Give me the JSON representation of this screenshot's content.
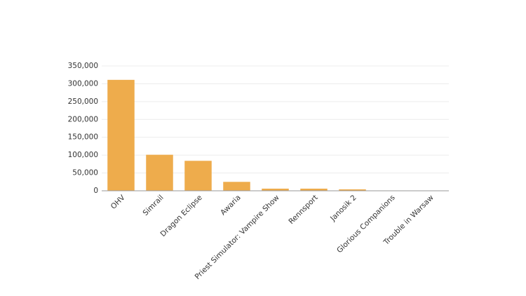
{
  "chart_data": {
    "type": "bar",
    "categories": [
      "OHV",
      "Simrail",
      "Dragon Eclipse",
      "Awaria",
      "Priest Simulator: Vampire Show",
      "Rennsport",
      "Janosik 2",
      "Glorious Companions",
      "Trouble in Warsaw"
    ],
    "values": [
      311000,
      101000,
      84000,
      25000,
      6000,
      6000,
      4000,
      1000,
      800
    ],
    "color": "#eeac4c",
    "ylim": [
      0,
      350000
    ],
    "yticks": [
      0,
      {
        "value": 50000,
        "label": "50,000"
      },
      {
        "value": 100000,
        "label": "100,000"
      },
      {
        "value": 150000,
        "label": "150,000"
      },
      {
        "value": 200000,
        "label": "200,000"
      },
      {
        "value": 250000,
        "label": "250,000"
      },
      {
        "value": 300000,
        "label": "300,000"
      },
      {
        "value": 350000,
        "label": "350,000"
      }
    ],
    "grid": true
  }
}
